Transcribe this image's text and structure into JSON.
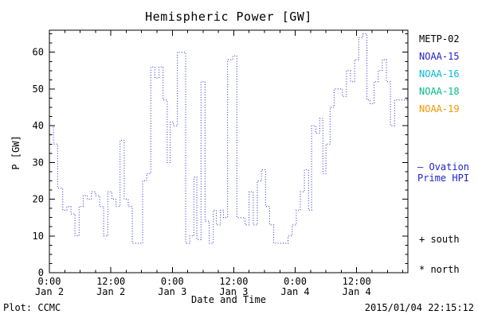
{
  "title": "Hemispheric Power [GW]",
  "legend": {
    "satellites": [
      {
        "label": "METP-02",
        "color": "#000000"
      },
      {
        "label": "NOAA-15",
        "color": "#2222cc"
      },
      {
        "label": "NOAA-16",
        "color": "#00bbdd"
      },
      {
        "label": "NOAA-18",
        "color": "#00bb88"
      },
      {
        "label": "NOAA-19",
        "color": "#ee9900"
      }
    ],
    "ovation_line1": "– Ovation",
    "ovation_line2": "Prime HPI",
    "ovation_color": "#2222cc",
    "south_label": "+ south",
    "north_label": "* north"
  },
  "footer": {
    "plot_source": "Plot: CCMC",
    "timestamp": "2015/01/04 22:15:12"
  },
  "chart_data": {
    "type": "line",
    "style": "step-dotted",
    "title": "Hemispheric Power [GW]",
    "xlabel": "Date and Time",
    "ylabel": "P [GW]",
    "line_color": "#2222cc",
    "ylim": [
      0,
      66
    ],
    "yticks": [
      0,
      10,
      20,
      30,
      40,
      50,
      60
    ],
    "xlim_hours": [
      0,
      70
    ],
    "xticks": [
      {
        "hour": 0,
        "line1": "0:00",
        "line2": "Jan 2"
      },
      {
        "hour": 12,
        "line1": "12:00",
        "line2": "Jan 2"
      },
      {
        "hour": 24,
        "line1": "0:00",
        "line2": "Jan 3"
      },
      {
        "hour": 36,
        "line1": "12:00",
        "line2": "Jan 3"
      },
      {
        "hour": 48,
        "line1": "0:00",
        "line2": "Jan 4"
      },
      {
        "hour": 60,
        "line1": "12:00",
        "line2": "Jan 4"
      }
    ],
    "x_hours": [
      0,
      0.8,
      1.6,
      2.6,
      3.4,
      4.2,
      5.0,
      5.8,
      6.6,
      7.4,
      8.2,
      9.0,
      9.8,
      10.6,
      11.4,
      12.2,
      13.0,
      13.8,
      14.6,
      15.4,
      16.2,
      17.4,
      18.2,
      19.0,
      19.8,
      20.6,
      21.4,
      22.2,
      23.0,
      23.6,
      24.2,
      25.0,
      26.0,
      26.6,
      27.4,
      28.2,
      28.8,
      29.6,
      30.4,
      31.2,
      32.0,
      32.6,
      33.4,
      34.0,
      34.8,
      35.8,
      36.6,
      37.4,
      38.2,
      39.0,
      39.8,
      40.6,
      41.4,
      42.2,
      43.0,
      43.8,
      44.8,
      45.8,
      46.6,
      47.4,
      48.2,
      49.0,
      49.8,
      50.6,
      51.2,
      52.0,
      52.8,
      53.4,
      54.0,
      54.8,
      55.6,
      56.4,
      57.2,
      58.0,
      58.8,
      59.6,
      60.4,
      61.2,
      62.0,
      62.6,
      63.4,
      64.2,
      65.0,
      65.8,
      66.6,
      67.4,
      68.2
    ],
    "y_gw": [
      40,
      35,
      23,
      17,
      18,
      16,
      10,
      18,
      21,
      20,
      22,
      21,
      18,
      10,
      22,
      20,
      18,
      36,
      20,
      18,
      8,
      8,
      25,
      27,
      56,
      53,
      56,
      47,
      30,
      41,
      40,
      60,
      60,
      8,
      10,
      26,
      9,
      52,
      14,
      8,
      17,
      13,
      17,
      15,
      58,
      59,
      15,
      15,
      13,
      22,
      13,
      25,
      28,
      18,
      13,
      8,
      8,
      8,
      10,
      13,
      17,
      22,
      28,
      17,
      40,
      38,
      42,
      27,
      35,
      45,
      50,
      50,
      48,
      55,
      52,
      58,
      64,
      65,
      47,
      46,
      52,
      55,
      58,
      52,
      40,
      47,
      47
    ]
  }
}
